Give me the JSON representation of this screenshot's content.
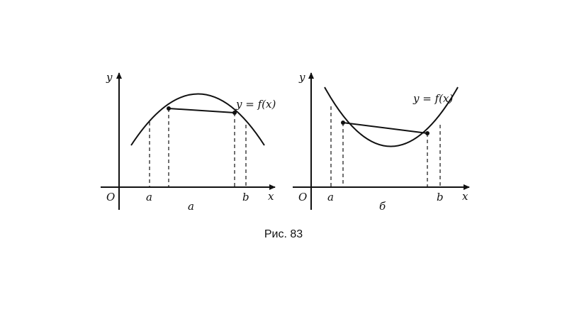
{
  "caption": "Рис. 83",
  "panels": [
    {
      "id": "concave",
      "sub_label": "а",
      "curve_label": "y = f(x)",
      "y_label": "y",
      "x_label": "x",
      "origin_label": "O",
      "a_label": "a",
      "b_label": "b"
    },
    {
      "id": "convex",
      "sub_label": "б",
      "curve_label": "y = f(x)",
      "y_label": "y",
      "x_label": "x",
      "origin_label": "O",
      "a_label": "a",
      "b_label": "b"
    }
  ]
}
